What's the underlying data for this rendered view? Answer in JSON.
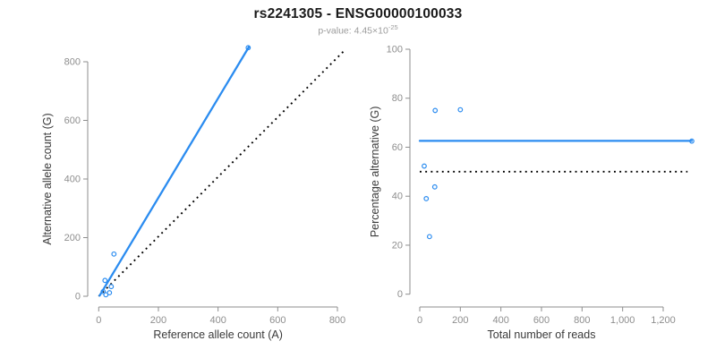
{
  "header": {
    "title": "rs2241305 - ENSG00000100033",
    "subtitle_prefix": "p-value: 4.45×10",
    "subtitle_exponent": "-25"
  },
  "colors": {
    "accent_blue": "#2b8cf0",
    "reference_black": "#000000",
    "axis_line": "#8e8e8e",
    "tick_label": "#8e8e8e",
    "axis_title": "#3a3a3a",
    "title_color": "#1a1a1a",
    "subtitle_color": "#9c9c9c",
    "background": "#ffffff"
  },
  "chart_data": [
    {
      "id": "left",
      "type": "scatter",
      "xlabel": "Reference allele count (A)",
      "ylabel": "Alternative allele count (G)",
      "xlim": [
        0,
        800
      ],
      "ylim": [
        0,
        800
      ],
      "grid": false,
      "legend": "none",
      "marker": "open-circle",
      "xticks": {
        "values": [
          0,
          200,
          400,
          600,
          800
        ],
        "labels": [
          "0",
          "200",
          "400",
          "600",
          "800"
        ]
      },
      "yticks": {
        "values": [
          0,
          200,
          400,
          600,
          800
        ],
        "labels": [
          "0",
          "200",
          "400",
          "600",
          "800"
        ]
      },
      "points": [
        {
          "x": 15,
          "y": 16
        },
        {
          "x": 24,
          "y": 5
        },
        {
          "x": 36,
          "y": 12
        },
        {
          "x": 21,
          "y": 54
        },
        {
          "x": 42,
          "y": 33
        },
        {
          "x": 51,
          "y": 144
        },
        {
          "x": 501,
          "y": 848
        }
      ],
      "fit_line": {
        "style": "solid",
        "x1": 3,
        "y1": 2,
        "x2": 503,
        "y2": 850
      },
      "reference_line": {
        "style": "dotted",
        "x1": 0,
        "y1": 0,
        "x2": 825,
        "y2": 840
      }
    },
    {
      "id": "right",
      "type": "scatter",
      "xlabel": "Total number of reads",
      "ylabel": "Percentage alternative (G)",
      "xlim": [
        0,
        1200
      ],
      "ylim": [
        0,
        100
      ],
      "grid": false,
      "legend": "none",
      "marker": "open-circle",
      "xticks": {
        "values": [
          0,
          200,
          400,
          600,
          800,
          1000,
          1200
        ],
        "labels": [
          "0",
          "200",
          "400",
          "600",
          "800",
          "1,000",
          "1,200"
        ]
      },
      "yticks": {
        "values": [
          0,
          20,
          40,
          60,
          80,
          100
        ],
        "labels": [
          "0",
          "20",
          "40",
          "60",
          "80",
          "100"
        ]
      },
      "points": [
        {
          "x": 22,
          "y": 52.3
        },
        {
          "x": 32,
          "y": 39
        },
        {
          "x": 48,
          "y": 23.5
        },
        {
          "x": 74,
          "y": 43.8
        },
        {
          "x": 76,
          "y": 75
        },
        {
          "x": 200,
          "y": 75.3
        },
        {
          "x": 1341,
          "y": 62.5
        }
      ],
      "fit_line": {
        "style": "solid",
        "x1": 0,
        "y1": 62.6,
        "x2": 1341,
        "y2": 62.6
      },
      "reference_line": {
        "style": "dotted",
        "x1": 0,
        "y1": 50,
        "x2": 1320,
        "y2": 50
      }
    }
  ]
}
